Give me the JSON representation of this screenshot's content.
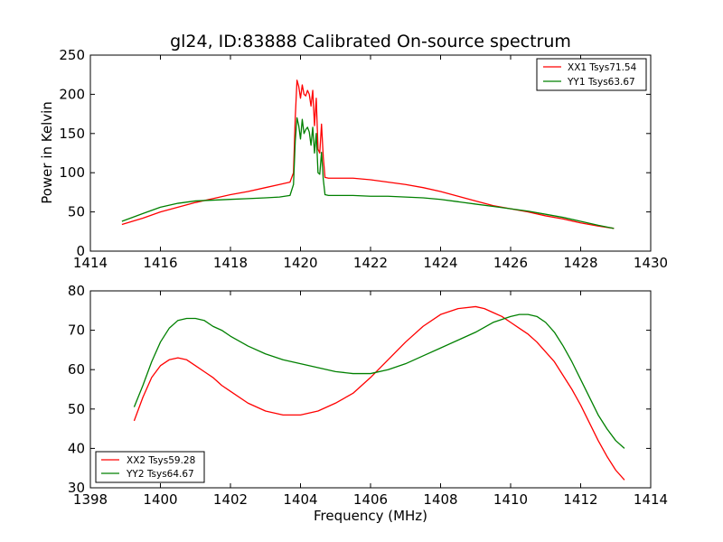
{
  "figure": {
    "title": "gl24, ID:83888 Calibrated On-source spectrum",
    "background": "#ffffff"
  },
  "colors": {
    "red": "#ff0000",
    "green": "#008000"
  },
  "chart_data": [
    {
      "type": "line",
      "title": "gl24, ID:83888 Calibrated On-source spectrum",
      "xlabel": "",
      "ylabel": "Power in Kelvin",
      "xlim": [
        1414,
        1430
      ],
      "ylim": [
        0,
        250
      ],
      "xticks": [
        1414,
        1416,
        1418,
        1420,
        1422,
        1424,
        1426,
        1428,
        1430
      ],
      "yticks": [
        0,
        50,
        100,
        150,
        200,
        250
      ],
      "grid": false,
      "legend_position": "top-right",
      "series": [
        {
          "name": "XX1 Tsys71.54",
          "color": "#ff0000",
          "x": [
            1414.9,
            1415.5,
            1416,
            1416.5,
            1417,
            1417.5,
            1418,
            1418.5,
            1419,
            1419.4,
            1419.7,
            1419.8,
            1419.85,
            1419.9,
            1419.95,
            1420.0,
            1420.05,
            1420.1,
            1420.15,
            1420.2,
            1420.25,
            1420.3,
            1420.35,
            1420.4,
            1420.45,
            1420.5,
            1420.55,
            1420.6,
            1420.65,
            1420.7,
            1420.8,
            1421,
            1421.5,
            1422,
            1422.5,
            1423,
            1423.5,
            1424,
            1424.5,
            1425,
            1425.5,
            1426,
            1426.5,
            1427,
            1427.5,
            1428,
            1428.5,
            1428.95
          ],
          "y": [
            34,
            42,
            50,
            56,
            62,
            67,
            72,
            76,
            81,
            85,
            88,
            100,
            170,
            218,
            210,
            195,
            212,
            200,
            198,
            205,
            200,
            185,
            205,
            160,
            195,
            130,
            125,
            162,
            120,
            94,
            93,
            93,
            93,
            91,
            88,
            85,
            81,
            76,
            70,
            64,
            58,
            54,
            50,
            45,
            41,
            36,
            32,
            29
          ]
        },
        {
          "name": "YY1 Tsys63.67",
          "color": "#008000",
          "x": [
            1414.9,
            1415.5,
            1416,
            1416.5,
            1417,
            1417.5,
            1418,
            1418.5,
            1419,
            1419.4,
            1419.7,
            1419.8,
            1419.85,
            1419.9,
            1419.95,
            1420.0,
            1420.05,
            1420.1,
            1420.15,
            1420.2,
            1420.25,
            1420.3,
            1420.35,
            1420.4,
            1420.45,
            1420.5,
            1420.55,
            1420.6,
            1420.65,
            1420.7,
            1420.8,
            1421,
            1421.5,
            1422,
            1422.5,
            1423,
            1423.5,
            1424,
            1424.5,
            1425,
            1425.5,
            1426,
            1426.5,
            1427,
            1427.5,
            1428,
            1428.5,
            1428.95
          ],
          "y": [
            38,
            48,
            56,
            61,
            64,
            65,
            66,
            67,
            68,
            69,
            71,
            85,
            140,
            170,
            160,
            143,
            168,
            150,
            155,
            158,
            152,
            135,
            158,
            125,
            150,
            100,
            98,
            126,
            92,
            72,
            71,
            71,
            71,
            70,
            70,
            69,
            68,
            66,
            63,
            60,
            57,
            54,
            51,
            47,
            43,
            38,
            33,
            29
          ]
        }
      ]
    },
    {
      "type": "line",
      "title": "",
      "xlabel": "Frequency (MHz)",
      "ylabel": "",
      "xlim": [
        1398,
        1414
      ],
      "ylim": [
        30,
        80
      ],
      "xticks": [
        1398,
        1400,
        1402,
        1404,
        1406,
        1408,
        1410,
        1412,
        1414
      ],
      "yticks": [
        30,
        40,
        50,
        60,
        70,
        80
      ],
      "grid": false,
      "legend_position": "bottom-left",
      "series": [
        {
          "name": "XX2 Tsys59.28",
          "color": "#ff0000",
          "x": [
            1399.25,
            1399.5,
            1399.75,
            1400,
            1400.25,
            1400.5,
            1400.75,
            1401,
            1401.25,
            1401.5,
            1401.75,
            1402,
            1402.5,
            1403,
            1403.5,
            1404,
            1404.5,
            1405,
            1405.5,
            1406,
            1406.5,
            1407,
            1407.5,
            1408,
            1408.5,
            1409,
            1409.25,
            1409.5,
            1409.75,
            1410,
            1410.25,
            1410.5,
            1410.75,
            1411,
            1411.25,
            1411.5,
            1411.75,
            1412,
            1412.25,
            1412.5,
            1412.75,
            1413,
            1413.25
          ],
          "y": [
            47,
            53,
            58,
            61,
            62.5,
            63,
            62.5,
            61,
            59.5,
            58,
            56,
            54.5,
            51.5,
            49.5,
            48.5,
            48.5,
            49.5,
            51.5,
            54,
            58,
            62.5,
            67,
            71,
            74,
            75.5,
            76,
            75.5,
            74.5,
            73.5,
            72,
            70.5,
            69,
            67,
            64.5,
            62,
            58.5,
            55,
            51,
            46.5,
            42,
            38,
            34.5,
            32
          ]
        },
        {
          "name": "YY2 Tsys64.67",
          "color": "#008000",
          "x": [
            1399.25,
            1399.5,
            1399.75,
            1400,
            1400.25,
            1400.5,
            1400.75,
            1401,
            1401.25,
            1401.5,
            1401.75,
            1402,
            1402.5,
            1403,
            1403.5,
            1404,
            1404.5,
            1405,
            1405.5,
            1406,
            1406.5,
            1407,
            1407.5,
            1408,
            1408.5,
            1409,
            1409.5,
            1410,
            1410.25,
            1410.5,
            1410.75,
            1411,
            1411.25,
            1411.5,
            1411.75,
            1412,
            1412.25,
            1412.5,
            1412.75,
            1413,
            1413.25
          ],
          "y": [
            50.5,
            56,
            62,
            67,
            70.5,
            72.5,
            73,
            73,
            72.5,
            71,
            70,
            68.5,
            66,
            64,
            62.5,
            61.5,
            60.5,
            59.5,
            59,
            59,
            60,
            61.5,
            63.5,
            65.5,
            67.5,
            69.5,
            72,
            73.5,
            74,
            74,
            73.5,
            72,
            69.5,
            66,
            62,
            57.5,
            53,
            48.5,
            45,
            42,
            40
          ]
        }
      ]
    }
  ]
}
